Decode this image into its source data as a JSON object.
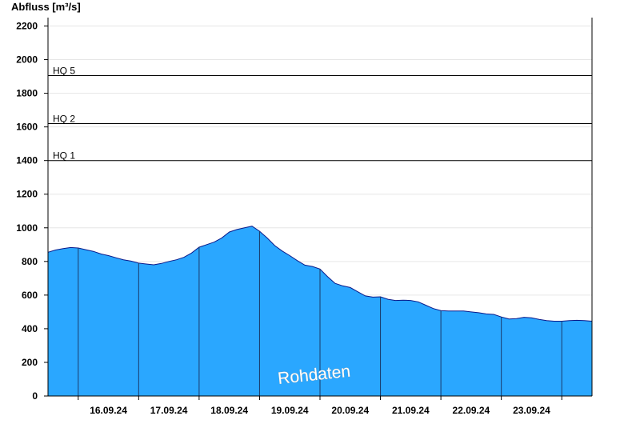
{
  "chart_data": {
    "type": "area",
    "ylabel": "Abfluss [m³/s]",
    "xlabel": "",
    "title": "",
    "ylim": [
      0,
      2250
    ],
    "yticks": [
      0,
      200,
      400,
      600,
      800,
      1000,
      1200,
      1400,
      1600,
      1800,
      2000,
      2200
    ],
    "x_start": "15.09.24 12:00",
    "x_end": "24.09.24 12:00",
    "day_boundaries": [
      "16.09.24",
      "17.09.24",
      "18.09.24",
      "19.09.24",
      "20.09.24",
      "21.09.24",
      "22.09.24",
      "23.09.24",
      "24.09.24"
    ],
    "x_tick_labels": [
      "16.09.24",
      "17.09.24",
      "18.09.24",
      "19.09.24",
      "20.09.24",
      "21.09.24",
      "22.09.24",
      "23.09.24"
    ],
    "grid": "horizontal",
    "fill_color": "#2aa7ff",
    "line_color": "#0a1a8a",
    "thresholds": [
      {
        "label": "HQ 1",
        "value": 1400
      },
      {
        "label": "HQ 2",
        "value": 1620
      },
      {
        "label": "HQ 5",
        "value": 1905
      }
    ],
    "series": [
      {
        "x": [
          "15.09.24 12:00",
          "15.09.24 15:00",
          "15.09.24 18:00",
          "15.09.24 21:00",
          "16.09.24 00:00",
          "16.09.24 03:00",
          "16.09.24 06:00",
          "16.09.24 09:00",
          "16.09.24 12:00",
          "16.09.24 15:00",
          "16.09.24 18:00",
          "16.09.24 21:00",
          "17.09.24 00:00",
          "17.09.24 03:00",
          "17.09.24 06:00",
          "17.09.24 09:00",
          "17.09.24 12:00",
          "17.09.24 15:00",
          "17.09.24 18:00",
          "17.09.24 21:00",
          "18.09.24 00:00",
          "18.09.24 03:00",
          "18.09.24 06:00",
          "18.09.24 09:00",
          "18.09.24 12:00",
          "18.09.24 15:00",
          "18.09.24 18:00",
          "18.09.24 21:00",
          "19.09.24 00:00",
          "19.09.24 03:00",
          "19.09.24 06:00",
          "19.09.24 09:00",
          "19.09.24 12:00",
          "19.09.24 15:00",
          "19.09.24 18:00",
          "19.09.24 21:00",
          "20.09.24 00:00",
          "20.09.24 03:00",
          "20.09.24 06:00",
          "20.09.24 09:00",
          "20.09.24 12:00",
          "20.09.24 15:00",
          "20.09.24 18:00",
          "20.09.24 21:00",
          "21.09.24 00:00",
          "21.09.24 03:00",
          "21.09.24 06:00",
          "21.09.24 09:00",
          "21.09.24 12:00",
          "21.09.24 15:00",
          "21.09.24 18:00",
          "21.09.24 21:00",
          "22.09.24 00:00",
          "22.09.24 03:00",
          "22.09.24 06:00",
          "22.09.24 09:00",
          "22.09.24 12:00",
          "22.09.24 15:00",
          "22.09.24 18:00",
          "22.09.24 21:00",
          "23.09.24 00:00",
          "23.09.24 03:00",
          "23.09.24 06:00",
          "23.09.24 09:00",
          "23.09.24 12:00",
          "23.09.24 15:00",
          "23.09.24 18:00",
          "23.09.24 21:00",
          "24.09.24 00:00",
          "24.09.24 03:00",
          "24.09.24 06:00",
          "24.09.24 09:00",
          "24.09.24 12:00"
        ],
        "values": [
          855,
          868,
          876,
          883,
          880,
          870,
          860,
          845,
          835,
          822,
          810,
          802,
          790,
          785,
          780,
          788,
          800,
          810,
          825,
          850,
          885,
          900,
          915,
          940,
          975,
          990,
          1000,
          1010,
          980,
          940,
          895,
          862,
          835,
          805,
          778,
          770,
          755,
          710,
          670,
          655,
          645,
          620,
          595,
          588,
          590,
          575,
          568,
          570,
          568,
          560,
          540,
          520,
          508,
          505,
          505,
          505,
          500,
          495,
          488,
          485,
          470,
          458,
          460,
          468,
          465,
          455,
          448,
          445,
          445,
          448,
          450,
          448,
          445
        ]
      }
    ],
    "annotation": "Rohdaten"
  }
}
